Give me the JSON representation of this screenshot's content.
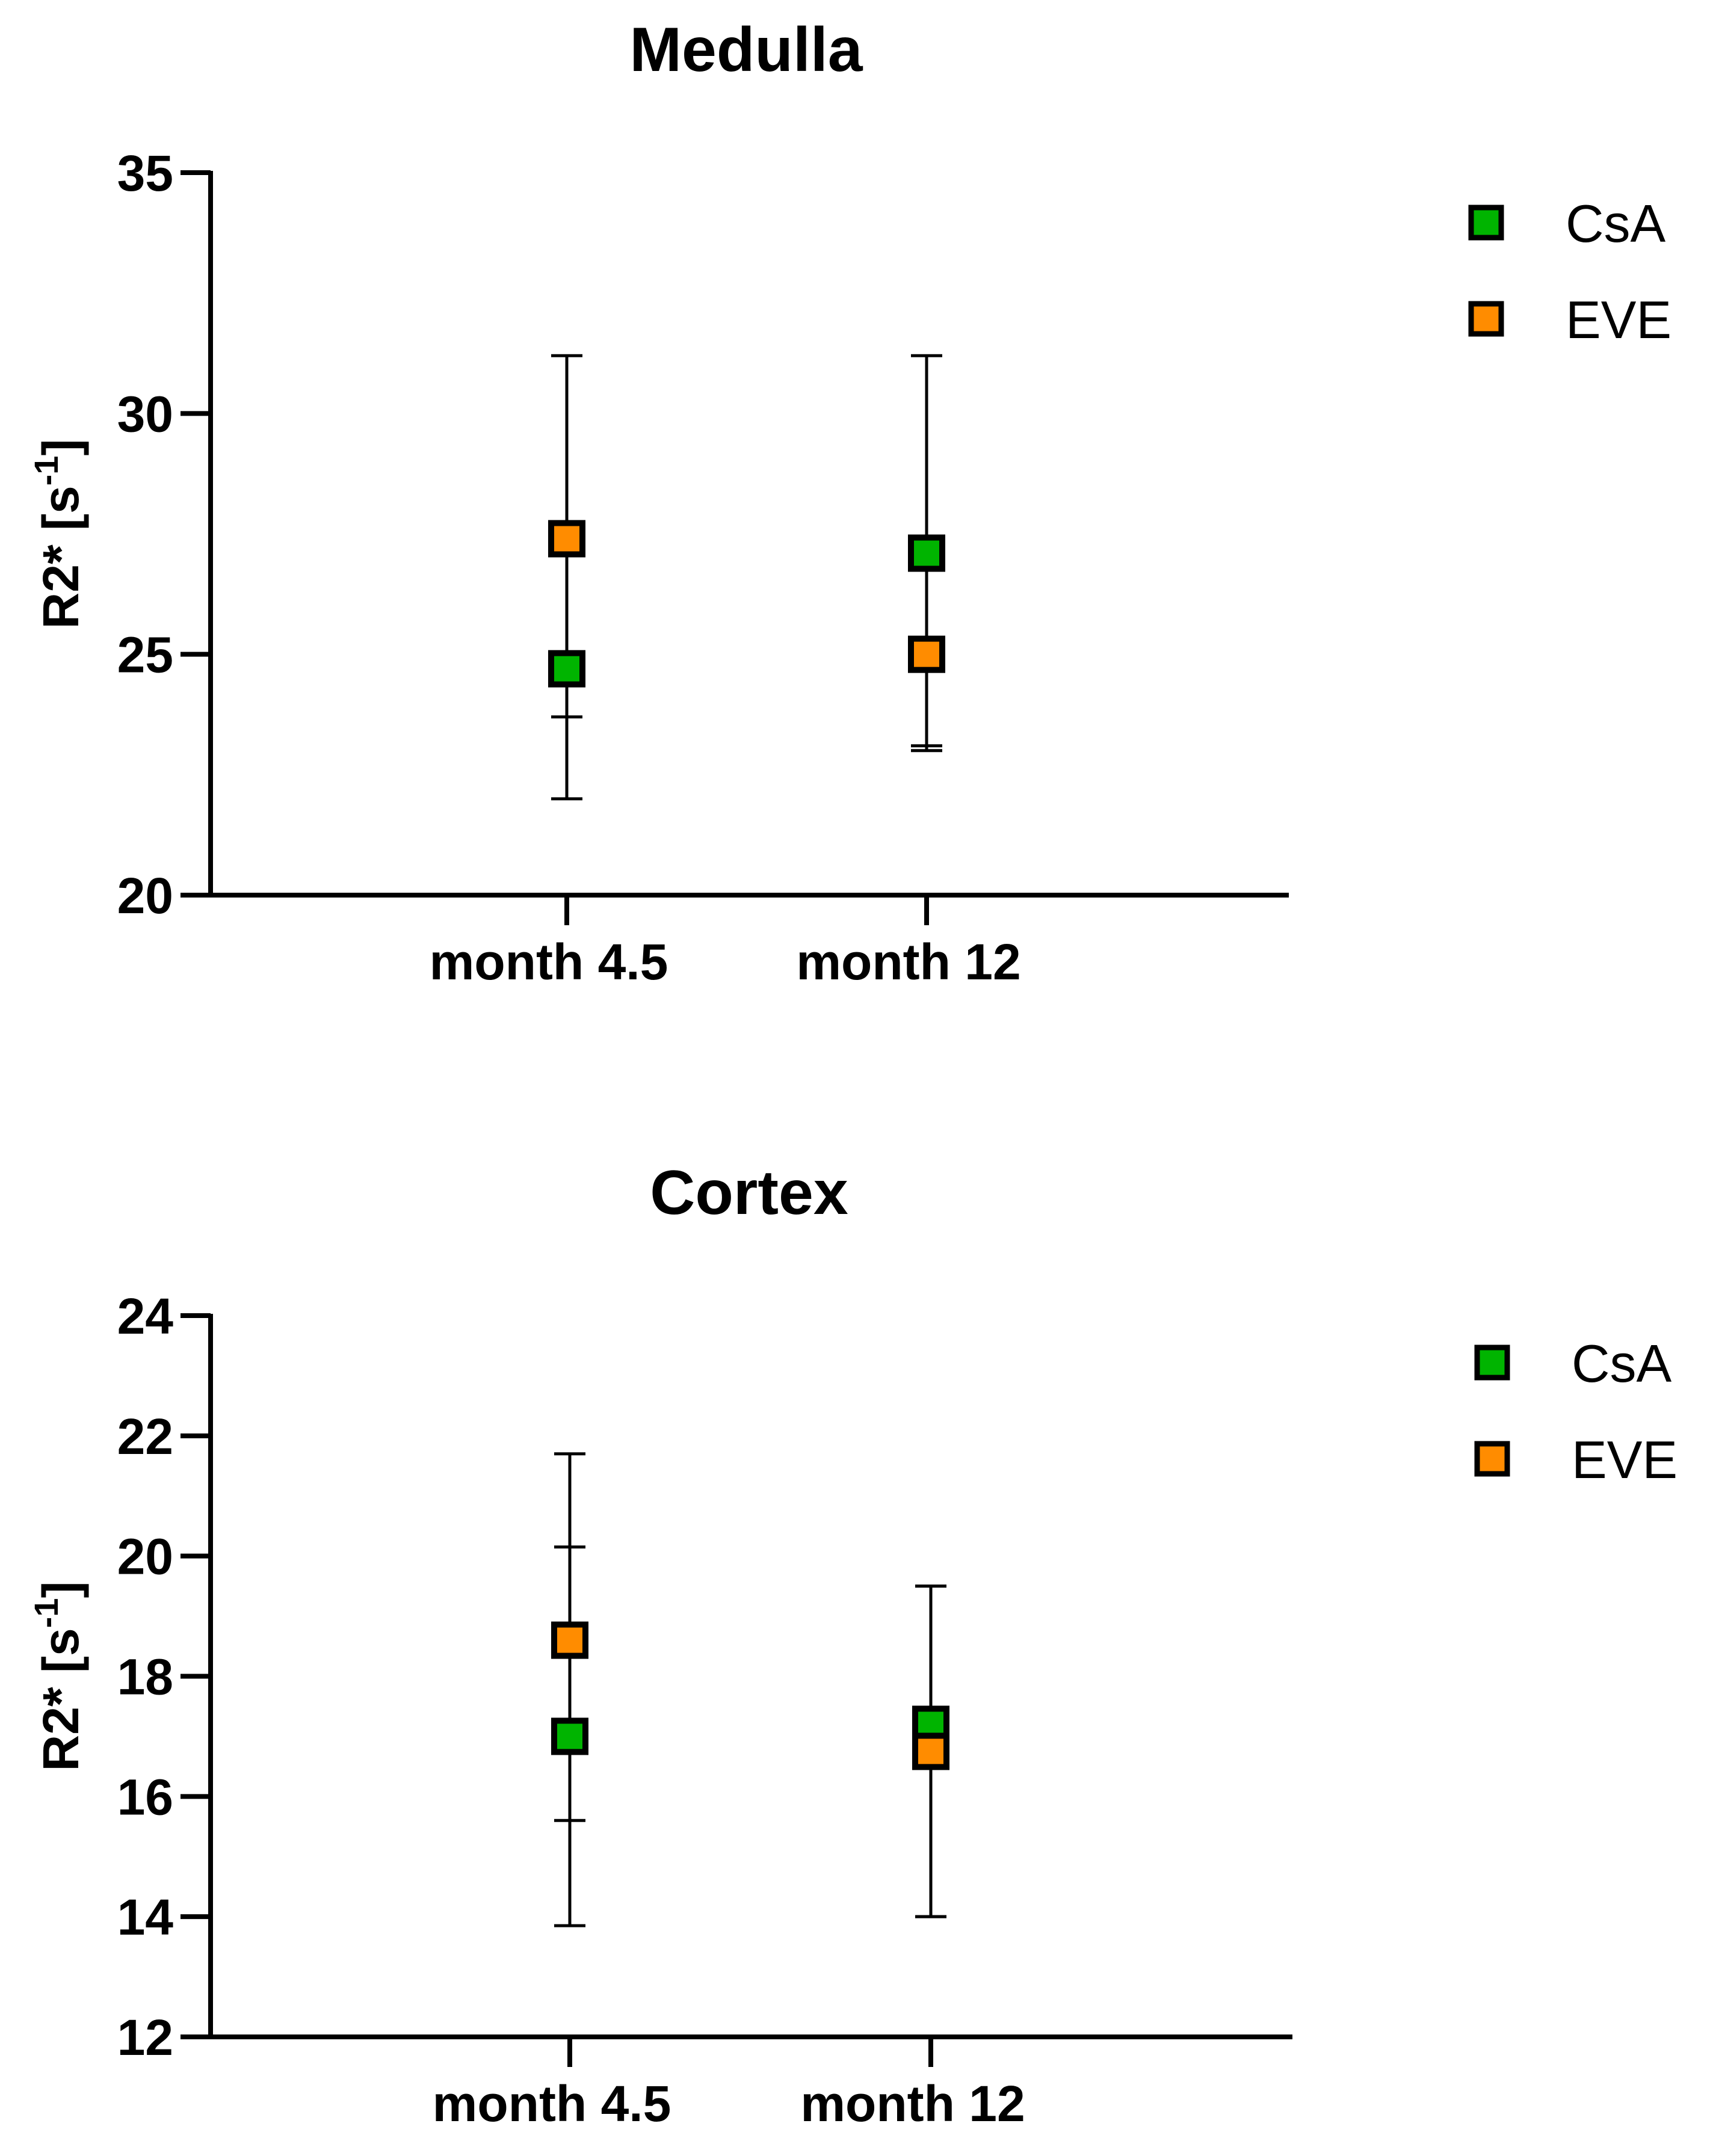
{
  "chart_data": [
    {
      "type": "scatter",
      "title": "Medulla",
      "ylabel": {
        "base": "R2* [s",
        "sup": "-1",
        "close": "]"
      },
      "xlabel": "",
      "categories": [
        "month 4.5",
        "month 12"
      ],
      "ylim": [
        20,
        35
      ],
      "yticks": [
        20,
        25,
        30,
        35
      ],
      "legend_position": "top-right",
      "grid": false,
      "series": [
        {
          "name": "CsA",
          "color": "#00b400",
          "values": [
            24.7,
            27.1
          ],
          "err_low": [
            22.0,
            23.0
          ],
          "err_high": [
            27.3,
            31.2
          ]
        },
        {
          "name": "EVE",
          "color": "#ff8c00",
          "values": [
            27.4,
            25.0
          ],
          "err_low": [
            23.7,
            23.1
          ],
          "err_high": [
            31.2,
            27.1
          ]
        }
      ]
    },
    {
      "type": "scatter",
      "title": "Cortex",
      "ylabel": {
        "base": "R2* [s",
        "sup": "-1",
        "close": "]"
      },
      "xlabel": "",
      "categories": [
        "month 4.5",
        "month 12"
      ],
      "ylim": [
        12,
        24
      ],
      "yticks": [
        12,
        14,
        16,
        18,
        20,
        22,
        24
      ],
      "legend_position": "top-right",
      "grid": false,
      "series": [
        {
          "name": "CsA",
          "color": "#00b400",
          "values": [
            17.0,
            17.2
          ],
          "err_low": [
            13.85,
            14.0
          ],
          "err_high": [
            20.15,
            19.5
          ]
        },
        {
          "name": "EVE",
          "color": "#ff8c00",
          "values": [
            18.6,
            16.75
          ],
          "err_low": [
            15.6,
            14.0
          ],
          "err_high": [
            21.7,
            19.5
          ]
        }
      ]
    }
  ]
}
